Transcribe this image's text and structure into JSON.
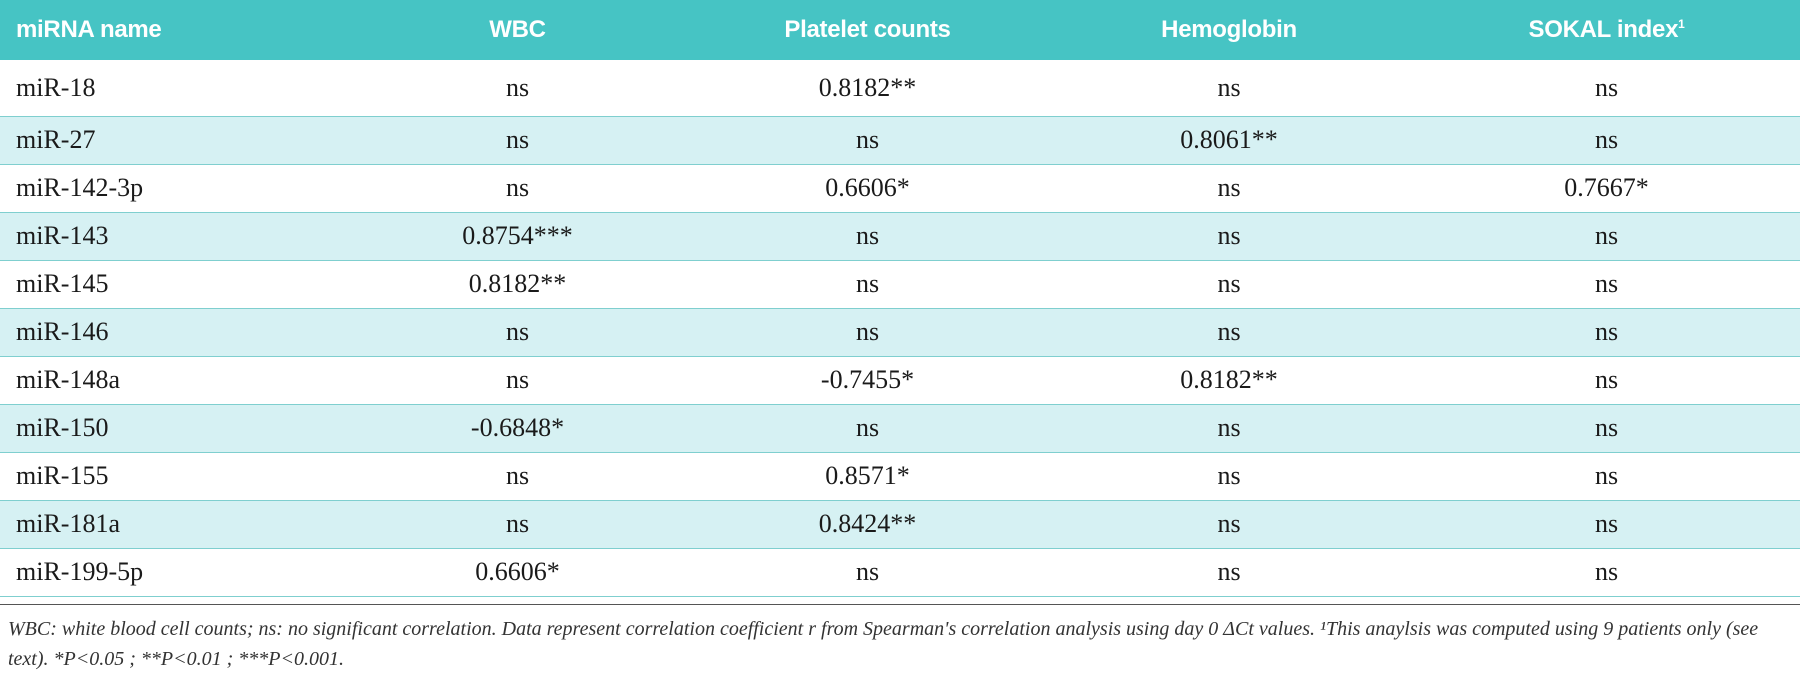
{
  "table": {
    "headers": [
      "miRNA name",
      "WBC",
      "Platelet counts",
      "Hemoglobin",
      "SOKAL index"
    ],
    "sokal_superscript": "1",
    "rows": [
      [
        "miR-18",
        "ns",
        "0.8182**",
        "ns",
        "ns"
      ],
      [
        "miR-27",
        "ns",
        "ns",
        "0.8061**",
        "ns"
      ],
      [
        "miR-142-3p",
        "ns",
        "0.6606*",
        "ns",
        "0.7667*"
      ],
      [
        "miR-143",
        "0.8754***",
        "ns",
        "ns",
        "ns"
      ],
      [
        "miR-145",
        "0.8182**",
        "ns",
        "ns",
        "ns"
      ],
      [
        "miR-146",
        "ns",
        "ns",
        "ns",
        "ns"
      ],
      [
        "miR-148a",
        "ns",
        "-0.7455*",
        "0.8182**",
        "ns"
      ],
      [
        "miR-150",
        "-0.6848*",
        "ns",
        "ns",
        "ns"
      ],
      [
        "miR-155",
        "ns",
        "0.8571*",
        "ns",
        "ns"
      ],
      [
        "miR-181a",
        "ns",
        "0.8424**",
        "ns",
        "ns"
      ],
      [
        "miR-199-5p",
        "0.6606*",
        "ns",
        "ns",
        "ns"
      ]
    ]
  },
  "footnote": "WBC: white blood cell counts; ns: no significant correlation. Data represent correlation coefficient r from Spearman's correlation analysis using day 0 ΔCt values. ¹This anaylsis was computed using 9 patients only (see text). *P<0.05 ; **P<0.01 ; ***P<0.001.",
  "colors": {
    "header_bg": "#46c4c4",
    "alt_row_bg": "#d6f1f3"
  }
}
